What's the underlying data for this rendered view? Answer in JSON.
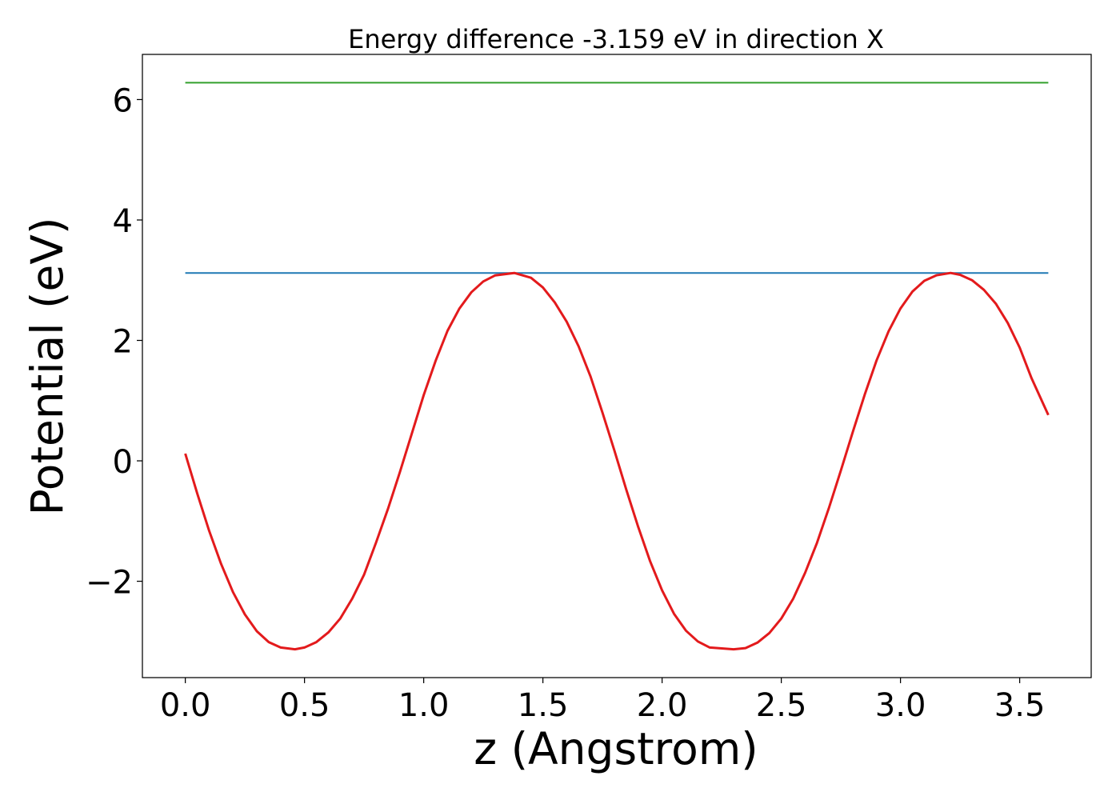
{
  "chart_data": {
    "type": "line",
    "title": "Energy difference -3.159 eV in direction X",
    "xlabel": "z (Angstrom)",
    "ylabel": "Potential (eV)",
    "xlim": [
      -0.18,
      3.8
    ],
    "ylim": [
      -3.6,
      6.75
    ],
    "xticks": [
      0.0,
      0.5,
      1.0,
      1.5,
      2.0,
      2.5,
      3.0,
      3.5
    ],
    "xtick_labels": [
      "0.0",
      "0.5",
      "1.0",
      "1.5",
      "2.0",
      "2.5",
      "3.0",
      "3.5"
    ],
    "yticks": [
      -2,
      0,
      2,
      4,
      6
    ],
    "ytick_labels": [
      "−2",
      "0",
      "2",
      "4",
      "6"
    ],
    "grid": false,
    "legend": "none",
    "colors": {
      "potential": "#e31a1c",
      "blue_line": "#1f78b4",
      "green_line": "#33a02c"
    },
    "series": [
      {
        "color": "#33a02c",
        "x": [
          0.0,
          3.62
        ],
        "y": [
          6.28,
          6.28
        ]
      },
      {
        "color": "#1f78b4",
        "x": [
          0.0,
          3.62
        ],
        "y": [
          3.12,
          3.12
        ]
      },
      {
        "color": "#e31a1c",
        "x": [
          0.0,
          0.05,
          0.1,
          0.15,
          0.2,
          0.25,
          0.3,
          0.35,
          0.4,
          0.46,
          0.5,
          0.55,
          0.6,
          0.65,
          0.7,
          0.75,
          0.8,
          0.85,
          0.9,
          0.95,
          1.0,
          1.05,
          1.1,
          1.15,
          1.2,
          1.25,
          1.3,
          1.38,
          1.45,
          1.5,
          1.55,
          1.6,
          1.65,
          1.7,
          1.75,
          1.8,
          1.85,
          1.9,
          1.95,
          2.0,
          2.05,
          2.1,
          2.15,
          2.2,
          2.3,
          2.35,
          2.4,
          2.45,
          2.5,
          2.55,
          2.6,
          2.65,
          2.7,
          2.75,
          2.8,
          2.85,
          2.9,
          2.95,
          3.0,
          3.05,
          3.1,
          3.15,
          3.21,
          3.25,
          3.3,
          3.35,
          3.4,
          3.45,
          3.5,
          3.55,
          3.62
        ],
        "y": [
          0.12,
          -0.54,
          -1.16,
          -1.71,
          -2.18,
          -2.55,
          -2.83,
          -3.01,
          -3.1,
          -3.13,
          -3.1,
          -3.01,
          -2.85,
          -2.62,
          -2.29,
          -1.89,
          -1.36,
          -0.8,
          -0.19,
          0.45,
          1.09,
          1.66,
          2.16,
          2.53,
          2.8,
          2.98,
          3.08,
          3.12,
          3.04,
          2.88,
          2.63,
          2.31,
          1.9,
          1.4,
          0.8,
          0.17,
          -0.48,
          -1.1,
          -1.67,
          -2.15,
          -2.54,
          -2.82,
          -3.0,
          -3.1,
          -3.13,
          -3.11,
          -3.02,
          -2.86,
          -2.62,
          -2.29,
          -1.86,
          -1.36,
          -0.78,
          -0.16,
          0.48,
          1.1,
          1.67,
          2.15,
          2.53,
          2.81,
          2.99,
          3.08,
          3.12,
          3.09,
          3.0,
          2.84,
          2.61,
          2.29,
          1.88,
          1.37,
          0.76
        ]
      }
    ]
  }
}
